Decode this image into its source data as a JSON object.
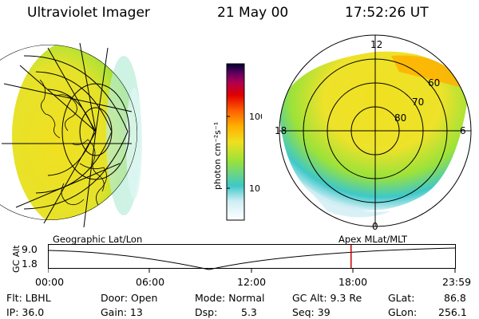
{
  "header": {
    "instrument": "Ultraviolet Imager",
    "date": "21 May 00",
    "time": "17:52:26 UT"
  },
  "colorbar": {
    "unit_label": "photon cm⁻²s⁻¹",
    "tick_labels": [
      "100",
      "10"
    ],
    "scale": "log",
    "colors": [
      "#ffffff",
      "#cfeef4",
      "#3ec8c8",
      "#9be23a",
      "#f0e020",
      "#ffb000",
      "#ff6000",
      "#e00000",
      "#b00050",
      "#600060",
      "#000030"
    ]
  },
  "polar_plot": {
    "mlt_labels": {
      "top": "12",
      "left": "18",
      "right": "6",
      "bottom": "0"
    },
    "lat_labels": [
      "60",
      "70",
      "80"
    ],
    "right_caption": "Apex MLat/MLT"
  },
  "globe": {
    "left_caption": "Geographic Lat/Lon"
  },
  "timeline": {
    "axis_label": "GC Alt",
    "y_ticks": [
      "9.0",
      "1.8"
    ],
    "x_ticks": [
      "00:00",
      "06:00",
      "12:00",
      "18:00",
      "23:59"
    ],
    "current_time_marker_hours": 17.87,
    "marker_color": "#cc0000"
  },
  "status": {
    "flt": "Flt: LBHL",
    "ip": "IP: 36.0",
    "door": "Door: Open",
    "gain": "Gain: 13",
    "mode": "Mode: Normal",
    "dsp": "Dsp:",
    "dsp_value": "5.3",
    "gc_alt": "GC Alt: 9.3 Re",
    "seq": "Seq: 39",
    "glat_label": "GLat:",
    "glat_value": "86.8",
    "glon_label": "GLon:",
    "glon_value": "256.1"
  }
}
